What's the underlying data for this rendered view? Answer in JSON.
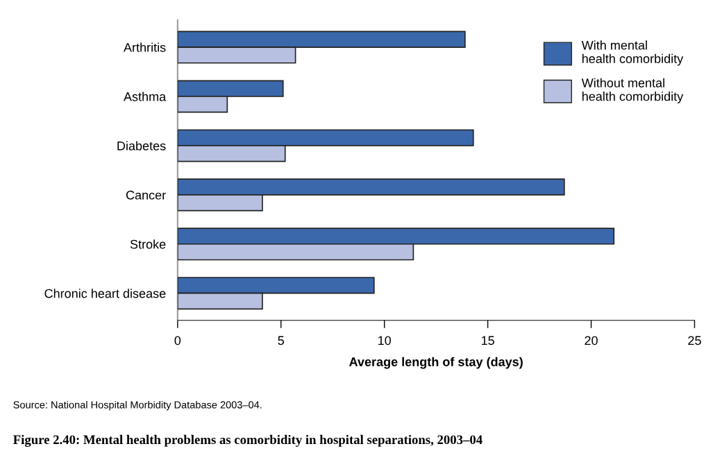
{
  "chart_data": {
    "type": "bar",
    "orientation": "horizontal",
    "title": "Figure 2.40: Mental health problems as comorbidity in hospital separations, 2003–04",
    "xlabel": "Average length of stay (days)",
    "categories": [
      "Arthritis",
      "Asthma",
      "Diabetes",
      "Cancer",
      "Stroke",
      "Chronic heart disease"
    ],
    "series": [
      {
        "name": "With mental\nhealth comorbidity",
        "color": "#3b68ab",
        "values": [
          13.9,
          5.1,
          14.3,
          18.7,
          21.1,
          9.5
        ]
      },
      {
        "name": "Without mental\nhealth comorbidity",
        "color": "#b7c0e0",
        "values": [
          5.7,
          2.4,
          5.2,
          4.1,
          11.4,
          4.1
        ]
      }
    ],
    "xlim": [
      0,
      25
    ],
    "xticks": [
      0,
      5,
      10,
      15,
      20,
      25
    ],
    "grid": false,
    "legend": "top right",
    "annotations": [
      "Source: National Hospital Morbidity Database 2003–04."
    ]
  }
}
